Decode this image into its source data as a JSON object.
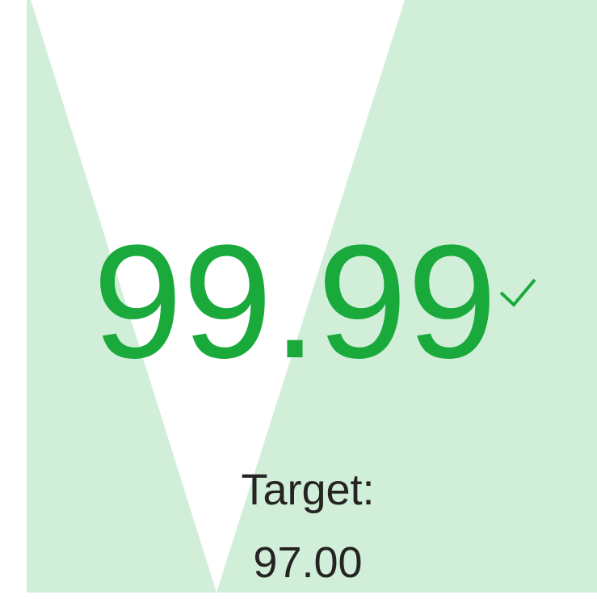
{
  "kpi": {
    "value": "99.99",
    "target_label": "Target:",
    "target_value": "97.00"
  }
}
